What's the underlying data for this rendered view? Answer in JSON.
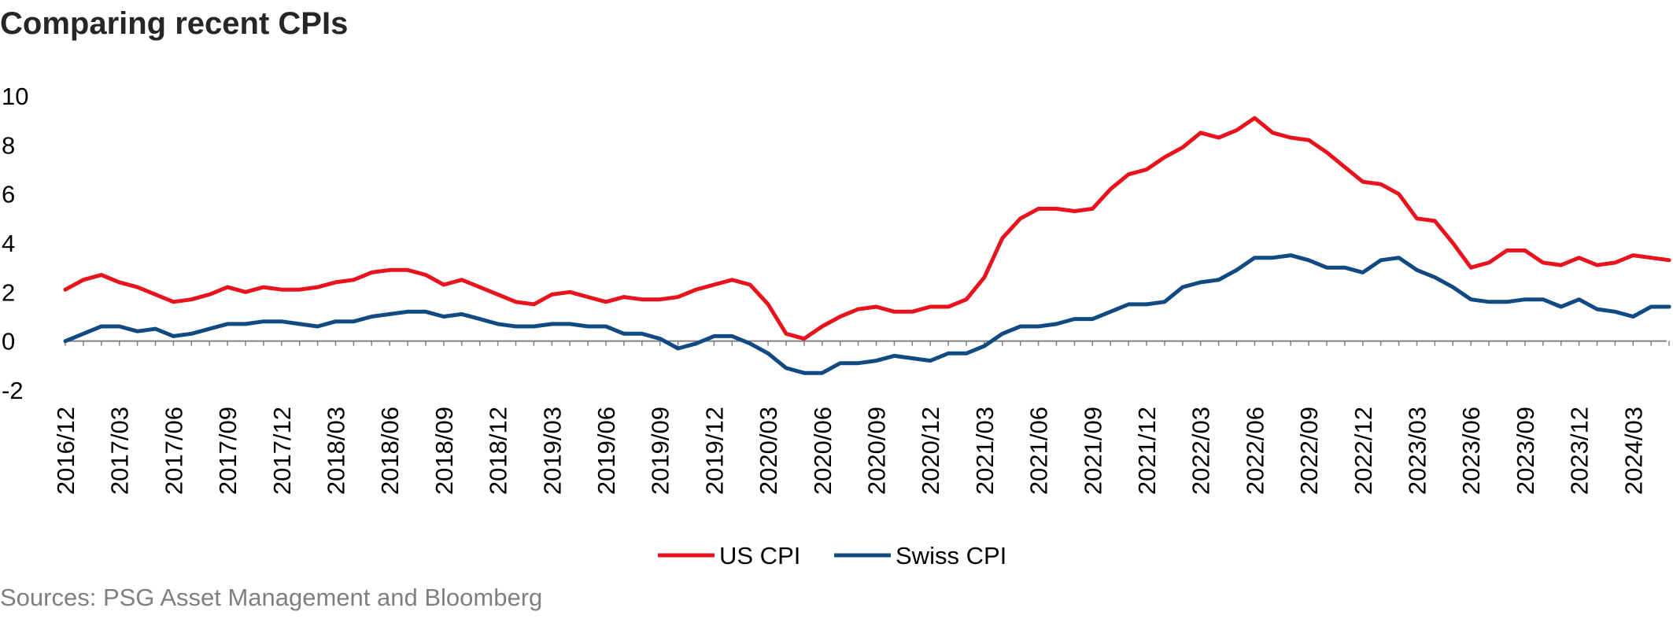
{
  "chart_data": {
    "type": "line",
    "title": "Comparing recent CPIs",
    "source": "Sources: PSG Asset Management and Bloomberg",
    "xlabel": "",
    "ylabel": "",
    "ylim": [
      -2,
      10
    ],
    "yticks": [
      -2,
      0,
      2,
      4,
      6,
      8,
      10
    ],
    "x_start": "2016/12",
    "x_ticks": [
      "2016/12",
      "2017/03",
      "2017/06",
      "2017/09",
      "2017/12",
      "2018/03",
      "2018/06",
      "2018/09",
      "2018/12",
      "2019/03",
      "2019/06",
      "2019/09",
      "2019/12",
      "2020/03",
      "2020/06",
      "2020/09",
      "2020/12",
      "2021/03",
      "2021/06",
      "2021/09",
      "2021/12",
      "2022/03",
      "2022/06",
      "2022/09",
      "2022/12",
      "2023/03",
      "2023/06",
      "2023/09",
      "2023/12",
      "2024/03"
    ],
    "grid": false,
    "legend": "bottom",
    "series": [
      {
        "name": "US CPI",
        "color": "#e8131c",
        "values": [
          2.1,
          2.5,
          2.7,
          2.4,
          2.2,
          1.9,
          1.6,
          1.7,
          1.9,
          2.2,
          2.0,
          2.2,
          2.1,
          2.1,
          2.2,
          2.4,
          2.5,
          2.8,
          2.9,
          2.9,
          2.7,
          2.3,
          2.5,
          2.2,
          1.9,
          1.6,
          1.5,
          1.9,
          2.0,
          1.8,
          1.6,
          1.8,
          1.7,
          1.7,
          1.8,
          2.1,
          2.3,
          2.5,
          2.3,
          1.5,
          0.3,
          0.1,
          0.6,
          1.0,
          1.3,
          1.4,
          1.2,
          1.2,
          1.4,
          1.4,
          1.7,
          2.6,
          4.2,
          5.0,
          5.4,
          5.4,
          5.3,
          5.4,
          6.2,
          6.8,
          7.0,
          7.5,
          7.9,
          8.5,
          8.3,
          8.6,
          9.1,
          8.5,
          8.3,
          8.2,
          7.7,
          7.1,
          6.5,
          6.4,
          6.0,
          5.0,
          4.9,
          4.0,
          3.0,
          3.2,
          3.7,
          3.7,
          3.2,
          3.1,
          3.4,
          3.1,
          3.2,
          3.5,
          3.4,
          3.3
        ]
      },
      {
        "name": "Swiss CPI",
        "color": "#114a82",
        "values": [
          0.0,
          0.3,
          0.6,
          0.6,
          0.4,
          0.5,
          0.2,
          0.3,
          0.5,
          0.7,
          0.7,
          0.8,
          0.8,
          0.7,
          0.6,
          0.8,
          0.8,
          1.0,
          1.1,
          1.2,
          1.2,
          1.0,
          1.1,
          0.9,
          0.7,
          0.6,
          0.6,
          0.7,
          0.7,
          0.6,
          0.6,
          0.3,
          0.3,
          0.1,
          -0.3,
          -0.1,
          0.2,
          0.2,
          -0.1,
          -0.5,
          -1.1,
          -1.3,
          -1.3,
          -0.9,
          -0.9,
          -0.8,
          -0.6,
          -0.7,
          -0.8,
          -0.5,
          -0.5,
          -0.2,
          0.3,
          0.6,
          0.6,
          0.7,
          0.9,
          0.9,
          1.2,
          1.5,
          1.5,
          1.6,
          2.2,
          2.4,
          2.5,
          2.9,
          3.4,
          3.4,
          3.5,
          3.3,
          3.0,
          3.0,
          2.8,
          3.3,
          3.4,
          2.9,
          2.6,
          2.2,
          1.7,
          1.6,
          1.6,
          1.7,
          1.7,
          1.4,
          1.7,
          1.3,
          1.2,
          1.0,
          1.4,
          1.4
        ]
      }
    ]
  }
}
